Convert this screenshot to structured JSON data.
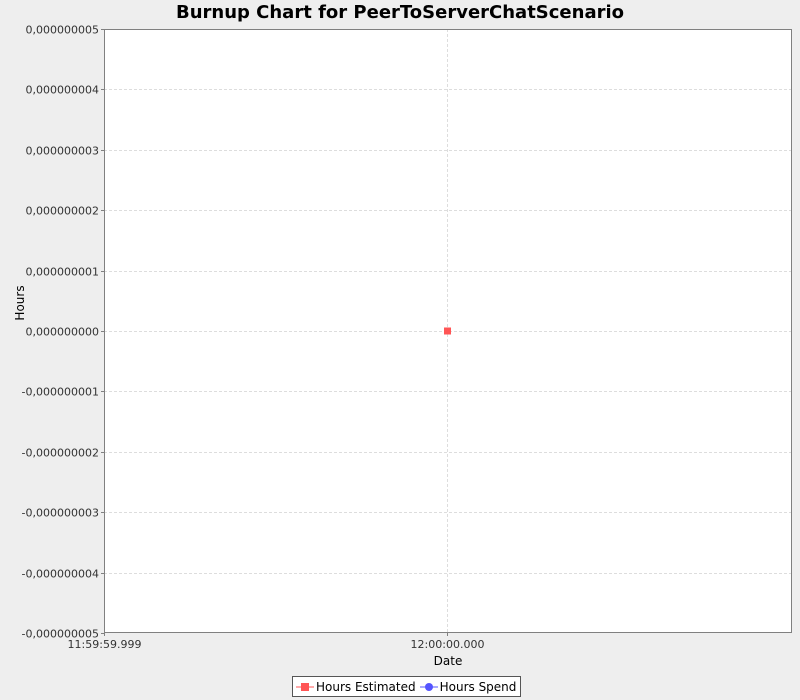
{
  "chart_data": {
    "type": "line",
    "title": "Burnup Chart for PeerToServerChatScenario",
    "xlabel": "Date",
    "ylabel": "Hours",
    "y_ticks": [
      "0,000000005",
      "0,000000004",
      "0,000000003",
      "0,000000002",
      "0,000000001",
      "0,000000000",
      "-0,000000001",
      "-0,000000002",
      "-0,000000003",
      "-0,000000004",
      "-0,000000005"
    ],
    "ylim": [
      -5e-09,
      5e-09
    ],
    "x_ticks": [
      "11:59:59.999",
      "12:00:00.000"
    ],
    "grid": true,
    "legend_position": "bottom",
    "series": [
      {
        "name": "Hours Estimated",
        "color": "#ff5555",
        "marker": "square",
        "points": [
          {
            "x": "12:00:00.000",
            "y": 0
          }
        ]
      },
      {
        "name": "Hours Spend",
        "color": "#5555ff",
        "marker": "circle",
        "points": []
      }
    ]
  }
}
